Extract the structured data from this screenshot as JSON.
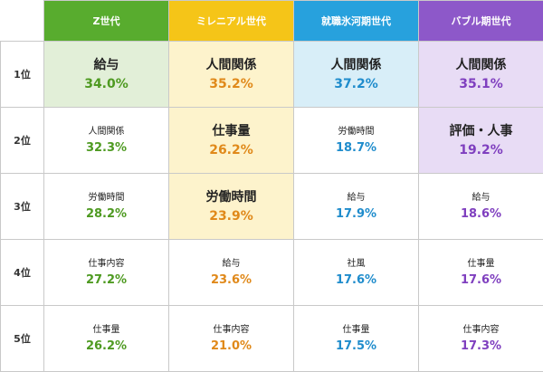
{
  "colors": {
    "z": "#58ac2e",
    "millennial": "#f5c518",
    "hyougaki": "#27a1dd",
    "bubble": "#8d58c9",
    "z_pct": "#4e9a21",
    "millennial_pct": "#e0891a",
    "hyougaki_pct": "#1f8ccc",
    "bubble_pct": "#7f3fbf",
    "z_highlight": "#e2efd8",
    "millennial_highlight": "#fdf3cc",
    "hyougaki_highlight": "#d8eef8",
    "bubble_highlight": "#e8dcf5"
  },
  "chart_data": {
    "type": "table",
    "title": "",
    "rank_labels": [
      "1位",
      "2位",
      "3位",
      "4位",
      "5位"
    ],
    "unit": "%",
    "columns": [
      {
        "key": "z",
        "name": "Z世代",
        "items": [
          {
            "label": "給与",
            "value": 34.0,
            "pct": "34.0%",
            "highlight": true
          },
          {
            "label": "人間関係",
            "value": 32.3,
            "pct": "32.3%",
            "highlight": false
          },
          {
            "label": "労働時間",
            "value": 28.2,
            "pct": "28.2%",
            "highlight": false
          },
          {
            "label": "仕事内容",
            "value": 27.2,
            "pct": "27.2%",
            "highlight": false
          },
          {
            "label": "仕事量",
            "value": 26.2,
            "pct": "26.2%",
            "highlight": false
          }
        ]
      },
      {
        "key": "millennial",
        "name": "ミレニアル世代",
        "items": [
          {
            "label": "人間関係",
            "value": 35.2,
            "pct": "35.2%",
            "highlight": true
          },
          {
            "label": "仕事量",
            "value": 26.2,
            "pct": "26.2%",
            "highlight": true
          },
          {
            "label": "労働時間",
            "value": 23.9,
            "pct": "23.9%",
            "highlight": true
          },
          {
            "label": "給与",
            "value": 23.6,
            "pct": "23.6%",
            "highlight": false
          },
          {
            "label": "仕事内容",
            "value": 21.0,
            "pct": "21.0%",
            "highlight": false
          }
        ]
      },
      {
        "key": "hyougaki",
        "name": "就職氷河期世代",
        "items": [
          {
            "label": "人間関係",
            "value": 37.2,
            "pct": "37.2%",
            "highlight": true
          },
          {
            "label": "労働時間",
            "value": 18.7,
            "pct": "18.7%",
            "highlight": false
          },
          {
            "label": "給与",
            "value": 17.9,
            "pct": "17.9%",
            "highlight": false
          },
          {
            "label": "社風",
            "value": 17.6,
            "pct": "17.6%",
            "highlight": false
          },
          {
            "label": "仕事量",
            "value": 17.5,
            "pct": "17.5%",
            "highlight": false
          }
        ]
      },
      {
        "key": "bubble",
        "name": "バブル期世代",
        "items": [
          {
            "label": "人間関係",
            "value": 35.1,
            "pct": "35.1%",
            "highlight": true
          },
          {
            "label": "評価・人事",
            "value": 19.2,
            "pct": "19.2%",
            "highlight": true
          },
          {
            "label": "給与",
            "value": 18.6,
            "pct": "18.6%",
            "highlight": false
          },
          {
            "label": "仕事量",
            "value": 17.6,
            "pct": "17.6%",
            "highlight": false
          },
          {
            "label": "仕事内容",
            "value": 17.3,
            "pct": "17.3%",
            "highlight": false
          }
        ]
      }
    ]
  }
}
